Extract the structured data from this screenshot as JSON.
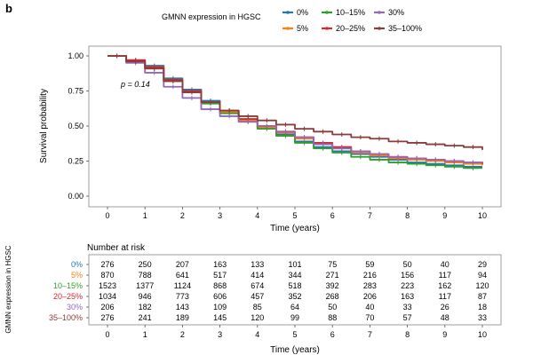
{
  "panel_label": "b",
  "chart_data": {
    "type": "line",
    "title": "",
    "xlabel": "Time (years)",
    "ylabel": "Survival probability",
    "xlim": [
      0,
      10
    ],
    "ylim": [
      0,
      1
    ],
    "x_ticks": [
      "0",
      "1",
      "2",
      "3",
      "4",
      "5",
      "6",
      "7",
      "8",
      "9",
      "10"
    ],
    "y_ticks": [
      "0.00",
      "0.25",
      "0.50",
      "0.75",
      "1.00"
    ],
    "annotation": "p = 0.14",
    "legend": {
      "title": "GMNN expression in HGSC",
      "placement": "top"
    },
    "x": [
      0,
      0.5,
      1,
      1.5,
      2,
      2.5,
      3,
      3.5,
      4,
      4.5,
      5,
      5.5,
      6,
      6.5,
      7,
      7.5,
      8,
      8.5,
      9,
      9.5,
      10
    ],
    "series": [
      {
        "name": "0%",
        "color": "#1f77b4",
        "values": [
          1.0,
          0.97,
          0.93,
          0.84,
          0.76,
          0.68,
          0.61,
          0.55,
          0.49,
          0.44,
          0.39,
          0.35,
          0.32,
          0.3,
          0.28,
          0.26,
          0.24,
          0.23,
          0.22,
          0.21,
          0.21
        ]
      },
      {
        "name": "5%",
        "color": "#ff7f0e",
        "values": [
          1.0,
          0.96,
          0.92,
          0.83,
          0.75,
          0.67,
          0.6,
          0.54,
          0.49,
          0.45,
          0.41,
          0.37,
          0.34,
          0.31,
          0.29,
          0.27,
          0.26,
          0.25,
          0.24,
          0.23,
          0.22
        ]
      },
      {
        "name": "10–15%",
        "color": "#2ca02c",
        "values": [
          1.0,
          0.96,
          0.91,
          0.82,
          0.74,
          0.66,
          0.59,
          0.53,
          0.48,
          0.43,
          0.38,
          0.34,
          0.31,
          0.28,
          0.26,
          0.24,
          0.23,
          0.22,
          0.21,
          0.2,
          0.2
        ]
      },
      {
        "name": "20–25%",
        "color": "#d62728",
        "values": [
          1.0,
          0.97,
          0.92,
          0.83,
          0.75,
          0.67,
          0.61,
          0.55,
          0.5,
          0.46,
          0.42,
          0.38,
          0.35,
          0.32,
          0.3,
          0.28,
          0.27,
          0.26,
          0.25,
          0.24,
          0.23
        ]
      },
      {
        "name": "30%",
        "color": "#9467bd",
        "values": [
          1.0,
          0.95,
          0.88,
          0.78,
          0.7,
          0.62,
          0.57,
          0.53,
          0.5,
          0.46,
          0.42,
          0.37,
          0.34,
          0.32,
          0.3,
          0.28,
          0.27,
          0.26,
          0.25,
          0.24,
          0.24
        ]
      },
      {
        "name": "35–100%",
        "color": "#8c3b3b",
        "values": [
          1.0,
          0.96,
          0.91,
          0.82,
          0.74,
          0.67,
          0.61,
          0.57,
          0.54,
          0.51,
          0.48,
          0.46,
          0.44,
          0.42,
          0.41,
          0.39,
          0.38,
          0.37,
          0.36,
          0.35,
          0.33
        ]
      }
    ]
  },
  "risk_table": {
    "title": "Number at risk",
    "ylabel": "GMNN expression in HGSC",
    "xlabel": "Time (years)",
    "times": [
      "0",
      "1",
      "2",
      "3",
      "4",
      "5",
      "6",
      "7",
      "8",
      "9",
      "10"
    ],
    "rows": [
      {
        "label": "0%",
        "color": "#1f77b4",
        "values": [
          "276",
          "250",
          "207",
          "163",
          "133",
          "101",
          "75",
          "59",
          "50",
          "40",
          "29"
        ]
      },
      {
        "label": "5%",
        "color": "#ff7f0e",
        "values": [
          "870",
          "788",
          "641",
          "517",
          "414",
          "344",
          "271",
          "216",
          "156",
          "117",
          "94"
        ]
      },
      {
        "label": "10–15%",
        "color": "#2ca02c",
        "values": [
          "1523",
          "1377",
          "1124",
          "868",
          "674",
          "518",
          "392",
          "283",
          "223",
          "162",
          "120"
        ]
      },
      {
        "label": "20–25%",
        "color": "#d62728",
        "values": [
          "1034",
          "946",
          "773",
          "606",
          "457",
          "352",
          "268",
          "206",
          "163",
          "117",
          "87"
        ]
      },
      {
        "label": "30%",
        "color": "#9467bd",
        "values": [
          "206",
          "182",
          "143",
          "109",
          "85",
          "64",
          "50",
          "40",
          "33",
          "26",
          "18"
        ]
      },
      {
        "label": "35–100%",
        "color": "#8c3b3b",
        "values": [
          "276",
          "241",
          "189",
          "145",
          "120",
          "99",
          "88",
          "70",
          "57",
          "48",
          "33"
        ]
      }
    ]
  }
}
